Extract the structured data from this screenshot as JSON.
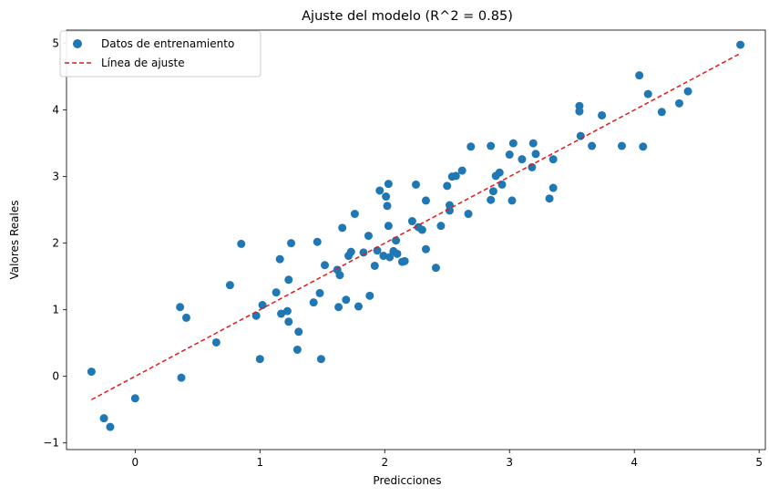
{
  "chart_data": {
    "type": "scatter",
    "title": "Ajuste del modelo (R^2 = 0.85)",
    "xlabel": "Predicciones",
    "ylabel": "Valores Reales",
    "xlim": [
      -0.55,
      5.05
    ],
    "ylim": [
      -1.1,
      5.2
    ],
    "xticks": [
      0,
      1,
      2,
      3,
      4,
      5
    ],
    "yticks": [
      -1,
      0,
      1,
      2,
      3,
      4,
      5
    ],
    "grid": false,
    "legend_position": "top-left",
    "series": [
      {
        "name": "Datos de entrenamiento",
        "kind": "scatter",
        "color": "#1f77b4",
        "points": [
          [
            -0.35,
            0.07
          ],
          [
            -0.25,
            -0.63
          ],
          [
            -0.2,
            -0.76
          ],
          [
            0.0,
            -0.33
          ],
          [
            0.36,
            1.04
          ],
          [
            0.37,
            -0.02
          ],
          [
            0.41,
            0.88
          ],
          [
            0.65,
            0.51
          ],
          [
            0.76,
            1.37
          ],
          [
            0.85,
            1.99
          ],
          [
            0.97,
            0.91
          ],
          [
            1.0,
            0.26
          ],
          [
            1.02,
            1.07
          ],
          [
            1.13,
            1.26
          ],
          [
            1.16,
            1.76
          ],
          [
            1.17,
            0.94
          ],
          [
            1.22,
            0.98
          ],
          [
            1.23,
            0.82
          ],
          [
            1.23,
            1.45
          ],
          [
            1.25,
            2.0
          ],
          [
            1.3,
            0.4
          ],
          [
            1.31,
            0.67
          ],
          [
            1.43,
            1.11
          ],
          [
            1.46,
            2.02
          ],
          [
            1.48,
            1.25
          ],
          [
            1.49,
            0.26
          ],
          [
            1.52,
            1.67
          ],
          [
            1.62,
            1.6
          ],
          [
            1.63,
            1.04
          ],
          [
            1.64,
            1.52
          ],
          [
            1.66,
            2.23
          ],
          [
            1.69,
            1.15
          ],
          [
            1.71,
            1.81
          ],
          [
            1.73,
            1.87
          ],
          [
            1.76,
            2.44
          ],
          [
            1.79,
            1.05
          ],
          [
            1.83,
            1.86
          ],
          [
            1.87,
            2.11
          ],
          [
            1.88,
            1.21
          ],
          [
            1.92,
            1.66
          ],
          [
            1.94,
            1.89
          ],
          [
            1.96,
            2.79
          ],
          [
            1.99,
            1.81
          ],
          [
            2.01,
            2.7
          ],
          [
            2.02,
            2.56
          ],
          [
            2.03,
            2.89
          ],
          [
            2.03,
            2.26
          ],
          [
            2.04,
            1.79
          ],
          [
            2.07,
            1.88
          ],
          [
            2.09,
            2.04
          ],
          [
            2.1,
            1.84
          ],
          [
            2.14,
            1.72
          ],
          [
            2.16,
            1.73
          ],
          [
            2.22,
            2.33
          ],
          [
            2.25,
            2.88
          ],
          [
            2.27,
            2.24
          ],
          [
            2.3,
            2.2
          ],
          [
            2.33,
            2.64
          ],
          [
            2.33,
            1.91
          ],
          [
            2.41,
            1.63
          ],
          [
            2.45,
            2.26
          ],
          [
            2.5,
            2.86
          ],
          [
            2.52,
            2.57
          ],
          [
            2.52,
            2.49
          ],
          [
            2.54,
            3.0
          ],
          [
            2.57,
            3.01
          ],
          [
            2.62,
            3.09
          ],
          [
            2.67,
            2.44
          ],
          [
            2.69,
            3.45
          ],
          [
            2.85,
            2.65
          ],
          [
            2.85,
            3.46
          ],
          [
            2.87,
            2.78
          ],
          [
            2.89,
            3.01
          ],
          [
            2.92,
            3.06
          ],
          [
            2.94,
            2.88
          ],
          [
            3.0,
            3.33
          ],
          [
            3.02,
            2.64
          ],
          [
            3.03,
            3.5
          ],
          [
            3.1,
            3.26
          ],
          [
            3.18,
            3.14
          ],
          [
            3.19,
            3.5
          ],
          [
            3.21,
            3.34
          ],
          [
            3.32,
            2.67
          ],
          [
            3.35,
            3.26
          ],
          [
            3.35,
            2.83
          ],
          [
            3.56,
            4.06
          ],
          [
            3.56,
            3.98
          ],
          [
            3.57,
            3.61
          ],
          [
            3.66,
            3.46
          ],
          [
            3.74,
            3.92
          ],
          [
            3.9,
            3.46
          ],
          [
            4.04,
            4.52
          ],
          [
            4.07,
            3.45
          ],
          [
            4.11,
            4.24
          ],
          [
            4.22,
            3.97
          ],
          [
            4.36,
            4.1
          ],
          [
            4.43,
            4.28
          ],
          [
            4.85,
            4.98
          ]
        ]
      },
      {
        "name": "Línea de ajuste",
        "kind": "line",
        "style": "dashed",
        "color": "#e41a1c",
        "x": [
          -0.35,
          4.85
        ],
        "y": [
          -0.35,
          4.85
        ]
      }
    ]
  }
}
